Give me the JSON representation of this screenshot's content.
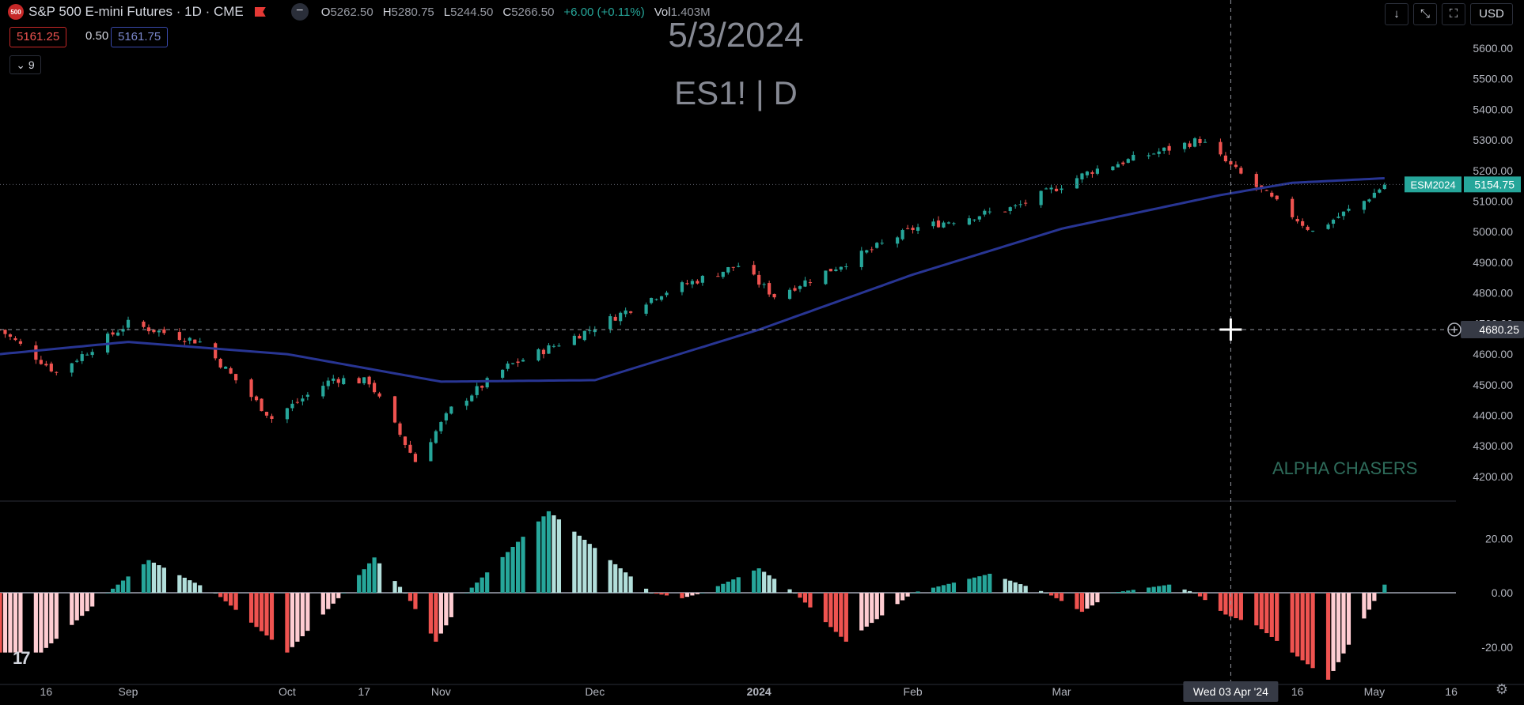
{
  "header": {
    "logo_text": "500",
    "title": "S&P 500 E-mini Futures · 1D · CME",
    "minus_label": "−",
    "ohlc": [
      {
        "k": "O",
        "v": "5262.50"
      },
      {
        "k": "H",
        "v": "5280.75"
      },
      {
        "k": "L",
        "v": "5244.50"
      },
      {
        "k": "C",
        "v": "5266.50"
      },
      {
        "k": "",
        "v": "+6.00 (+0.11%)"
      },
      {
        "k": "Vol",
        "v": "1.403M"
      }
    ],
    "sell_price": "5161.25",
    "spread": "0.50",
    "buy_price": "5161.75",
    "indicator_toggle": "⌄ 9"
  },
  "watermark": {
    "date": "5/3/2024",
    "symbol": "ES1! | D"
  },
  "brand": "ALPHA CHASERS",
  "toolbar": {
    "down_icon": "↓",
    "collapse_icon": "⤡",
    "fullscreen_icon": "⛶",
    "currency": "USD"
  },
  "footer": {
    "tv_logo": "17",
    "settings_icon": "⚙"
  },
  "colors": {
    "up": "#26a69a",
    "down": "#ef5350",
    "ma": "#283593",
    "hist_up_strong": "#26a69a",
    "hist_up_weak": "#b2dfdb",
    "hist_down_strong": "#ef5350",
    "hist_down_weak": "#ffcdd2",
    "grid": "#2a2e39"
  },
  "chart_data": {
    "type": "candlestick",
    "symbol": "ES1!",
    "interval": "1D",
    "contract_label": "ESM2024",
    "last_price": "5154.75",
    "crosshair_price": "4680.25",
    "crosshair_date": "Wed 03 Apr '24",
    "y_ticks": [
      "5600.00",
      "5500.00",
      "5400.00",
      "5300.00",
      "5200.00",
      "5100.00",
      "5000.00",
      "4900.00",
      "4800.00",
      "4700.00",
      "4600.00",
      "4500.00",
      "4400.00",
      "4300.00",
      "4200.00"
    ],
    "ylim": [
      4130,
      5680
    ],
    "x_ticks": [
      {
        "label": "16",
        "date": "2023-08-16"
      },
      {
        "label": "Sep",
        "date": "2023-09-01"
      },
      {
        "label": "Oct",
        "date": "2023-10-02"
      },
      {
        "label": "17",
        "date": "2023-10-17"
      },
      {
        "label": "Nov",
        "date": "2023-11-01"
      },
      {
        "label": "Dec",
        "date": "2023-12-01"
      },
      {
        "label": "2024",
        "date": "2024-01-02"
      },
      {
        "label": "Feb",
        "date": "2024-02-01"
      },
      {
        "label": "Mar",
        "date": "2024-03-01"
      },
      {
        "label": "16",
        "date": "2024-04-16"
      },
      {
        "label": "May",
        "date": "2024-05-01"
      },
      {
        "label": "16",
        "date": "2024-05-16"
      }
    ],
    "close_series": [
      {
        "date": "2023-08-07",
        "close": 4680
      },
      {
        "date": "2023-08-18",
        "close": 4540
      },
      {
        "date": "2023-09-01",
        "close": 4700
      },
      {
        "date": "2023-09-15",
        "close": 4640
      },
      {
        "date": "2023-09-29",
        "close": 4390
      },
      {
        "date": "2023-10-11",
        "close": 4520
      },
      {
        "date": "2023-10-18",
        "close": 4510
      },
      {
        "date": "2023-10-27",
        "close": 4250
      },
      {
        "date": "2023-11-03",
        "close": 4420
      },
      {
        "date": "2023-11-14",
        "close": 4560
      },
      {
        "date": "2023-11-30",
        "close": 4680
      },
      {
        "date": "2023-12-14",
        "close": 4800
      },
      {
        "date": "2023-12-29",
        "close": 4890
      },
      {
        "date": "2024-01-05",
        "close": 4790
      },
      {
        "date": "2024-01-19",
        "close": 4900
      },
      {
        "date": "2024-02-01",
        "close": 5010
      },
      {
        "date": "2024-02-21",
        "close": 5080
      },
      {
        "date": "2024-03-07",
        "close": 5200
      },
      {
        "date": "2024-03-28",
        "close": 5300
      },
      {
        "date": "2024-04-04",
        "close": 5200
      },
      {
        "date": "2024-04-19",
        "close": 5000
      },
      {
        "date": "2024-04-29",
        "close": 5100
      },
      {
        "date": "2024-05-03",
        "close": 5154
      }
    ],
    "ma_series": [
      {
        "date": "2023-08-07",
        "close": 4600
      },
      {
        "date": "2023-09-01",
        "close": 4640
      },
      {
        "date": "2023-10-02",
        "close": 4600
      },
      {
        "date": "2023-11-01",
        "close": 4510
      },
      {
        "date": "2023-12-01",
        "close": 4515
      },
      {
        "date": "2024-01-02",
        "close": 4680
      },
      {
        "date": "2024-02-01",
        "close": 4860
      },
      {
        "date": "2024-03-01",
        "close": 5010
      },
      {
        "date": "2024-04-01",
        "close": 5120
      },
      {
        "date": "2024-04-15",
        "close": 5160
      },
      {
        "date": "2024-05-03",
        "close": 5175
      }
    ],
    "oscillator": {
      "y_ticks": [
        "20.00",
        "0.00",
        "-20.00"
      ],
      "ylim": [
        -32,
        32
      ],
      "values": [
        {
          "date": "2023-08-15",
          "value": -22
        },
        {
          "date": "2023-08-28",
          "value": 0
        },
        {
          "date": "2023-09-05",
          "value": 12
        },
        {
          "date": "2023-09-18",
          "value": 0
        },
        {
          "date": "2023-10-02",
          "value": -22
        },
        {
          "date": "2023-10-13",
          "value": 0
        },
        {
          "date": "2023-10-19",
          "value": 13
        },
        {
          "date": "2023-10-25",
          "value": 0
        },
        {
          "date": "2023-10-31",
          "value": -18
        },
        {
          "date": "2023-11-06",
          "value": 0
        },
        {
          "date": "2023-11-22",
          "value": 30
        },
        {
          "date": "2023-12-12",
          "value": 0
        },
        {
          "date": "2023-12-18",
          "value": -2
        },
        {
          "date": "2023-12-22",
          "value": 0
        },
        {
          "date": "2024-01-02",
          "value": 9
        },
        {
          "date": "2024-01-09",
          "value": 0
        },
        {
          "date": "2024-01-19",
          "value": -18
        },
        {
          "date": "2024-02-01",
          "value": 0
        },
        {
          "date": "2024-02-16",
          "value": 7
        },
        {
          "date": "2024-02-27",
          "value": 0
        },
        {
          "date": "2024-03-05",
          "value": -7
        },
        {
          "date": "2024-03-11",
          "value": 0
        },
        {
          "date": "2024-03-22",
          "value": 3
        },
        {
          "date": "2024-03-27",
          "value": 0
        },
        {
          "date": "2024-04-02",
          "value": -8
        },
        {
          "date": "2024-04-08",
          "value": -12
        },
        {
          "date": "2024-04-22",
          "value": -32
        },
        {
          "date": "2024-05-01",
          "value": -3
        },
        {
          "date": "2024-05-03",
          "value": 3
        }
      ]
    }
  }
}
